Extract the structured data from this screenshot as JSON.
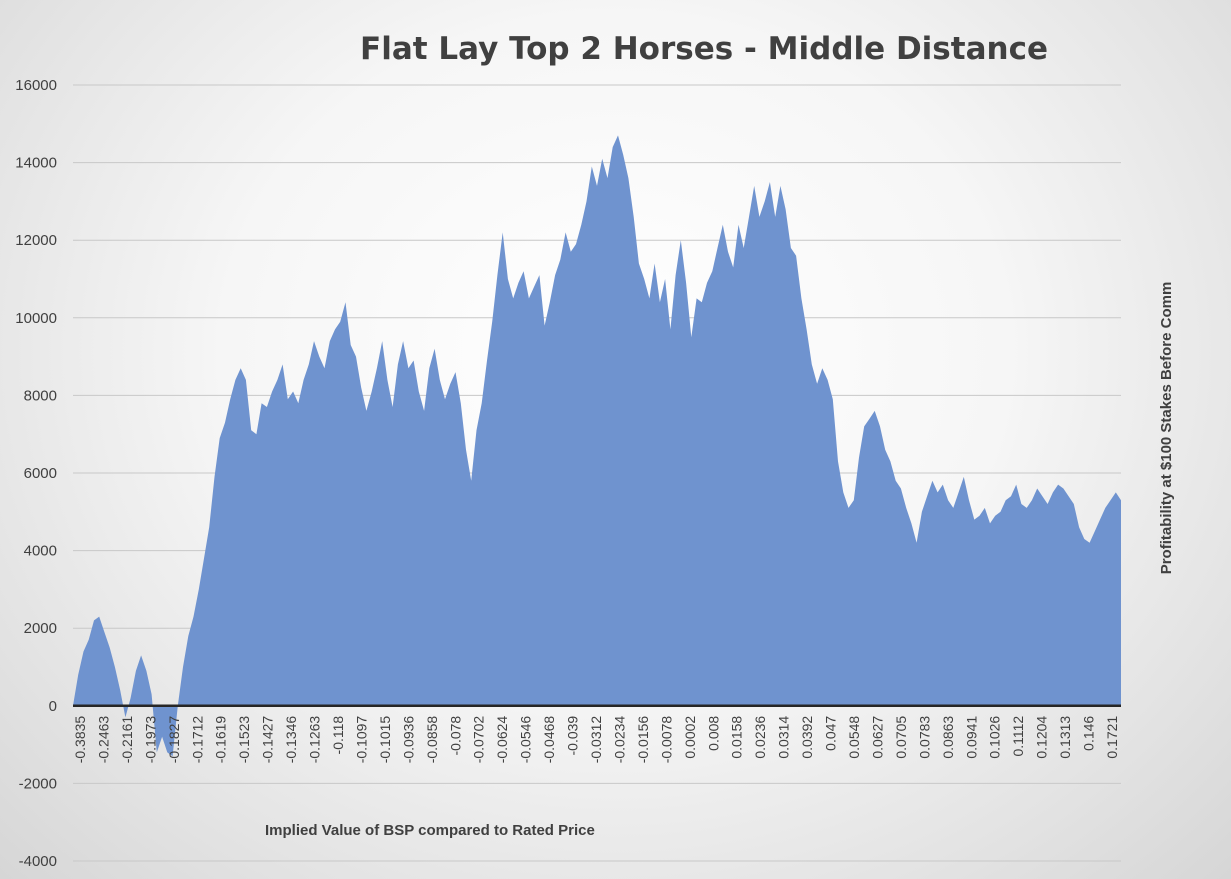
{
  "chart_data": {
    "type": "area",
    "title": "Flat Lay Top 2 Horses - Middle Distance",
    "xlabel": "Implied Value of BSP compared to Rated Price",
    "ylabel": "Profitability at $100 Stakes Before Comm",
    "ylim": [
      -4000,
      16000
    ],
    "yticks": [
      16000,
      14000,
      12000,
      10000,
      8000,
      6000,
      4000,
      2000,
      0,
      -2000,
      -4000
    ],
    "xtick_labels": [
      "-0.3835",
      "-0.2463",
      "-0.2161",
      "-0.1973",
      "-0.1827",
      "-0.1712",
      "-0.1619",
      "-0.1523",
      "-0.1427",
      "-0.1346",
      "-0.1263",
      "-0.118",
      "-0.1097",
      "-0.1015",
      "-0.0936",
      "-0.0858",
      "-0.078",
      "-0.0702",
      "-0.0624",
      "-0.0546",
      "-0.0468",
      "-0.039",
      "-0.0312",
      "-0.0234",
      "-0.0156",
      "-0.0078",
      "0.0002",
      "0.008",
      "0.0158",
      "0.0236",
      "0.0314",
      "0.0392",
      "0.047",
      "0.0548",
      "0.0627",
      "0.0705",
      "0.0783",
      "0.0863",
      "0.0941",
      "0.1026",
      "0.1112",
      "0.1204",
      "0.1313",
      "0.146",
      "0.1721"
    ],
    "grid": true,
    "color": "#6f93cf",
    "series": [
      {
        "values": [
          0,
          800,
          1400,
          1700,
          2200,
          2300,
          1900,
          1500,
          1000,
          400,
          -300,
          200,
          900,
          1300,
          900,
          300,
          -1200,
          -800,
          -1200,
          -1300,
          0,
          1000,
          1800,
          2300,
          3000,
          3800,
          4600,
          5900,
          6900,
          7300,
          7900,
          8400,
          8700,
          8400,
          7100,
          7000,
          7800,
          7700,
          8100,
          8400,
          8800,
          7900,
          8100,
          7800,
          8400,
          8800,
          9400,
          9000,
          8700,
          9400,
          9700,
          9900,
          10400,
          9300,
          9000,
          8200,
          7600,
          8100,
          8700,
          9400,
          8400,
          7700,
          8800,
          9400,
          8700,
          8900,
          8100,
          7600,
          8700,
          9200,
          8400,
          7900,
          8300,
          8600,
          7800,
          6600,
          5800,
          7100,
          7800,
          8900,
          9900,
          11100,
          12200,
          11000,
          10500,
          10900,
          11200,
          10500,
          10800,
          11100,
          9800,
          10400,
          11100,
          11500,
          12200,
          11700,
          11900,
          12400,
          13000,
          13900,
          13400,
          14100,
          13600,
          14400,
          14700,
          14200,
          13600,
          12600,
          11400,
          11000,
          10500,
          11400,
          10400,
          11000,
          9700,
          11100,
          12000,
          10900,
          9500,
          10500,
          10400,
          10900,
          11200,
          11800,
          12400,
          11700,
          11300,
          12400,
          11800,
          12600,
          13400,
          12600,
          13000,
          13500,
          12600,
          13400,
          12800,
          11800,
          11600,
          10500,
          9700,
          8800,
          8300,
          8700,
          8400,
          7900,
          6300,
          5500,
          5100,
          5300,
          6400,
          7200,
          7400,
          7600,
          7200,
          6600,
          6300,
          5800,
          5600,
          5100,
          4700,
          4200,
          5000,
          5400,
          5800,
          5500,
          5700,
          5300,
          5100,
          5500,
          5900,
          5300,
          4800,
          4900,
          5100,
          4700,
          4900,
          5000,
          5300,
          5400,
          5700,
          5200,
          5100,
          5300,
          5600,
          5400,
          5200,
          5500,
          5700,
          5600,
          5400,
          5200,
          4600,
          4300,
          4200,
          4500,
          4800,
          5100,
          5300,
          5500,
          5300
        ]
      }
    ]
  }
}
